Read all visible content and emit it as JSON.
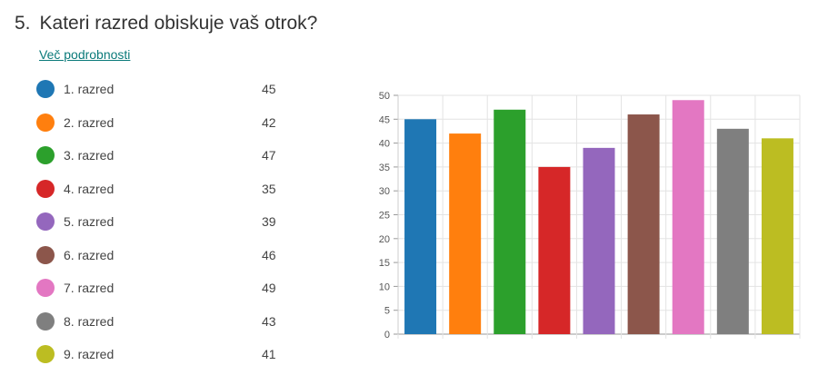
{
  "question": {
    "number": "5.",
    "text": "Kateri razred obiskuje vaš otrok?",
    "details_link": "Več podrobnosti"
  },
  "chart_data": {
    "type": "bar",
    "categories": [
      "1. razred",
      "2. razred",
      "3. razred",
      "4. razred",
      "5. razred",
      "6. razred",
      "7. razred",
      "8. razred",
      "9. razred"
    ],
    "values": [
      45,
      42,
      47,
      35,
      39,
      46,
      49,
      43,
      41
    ],
    "colors": [
      "#1f77b4",
      "#ff7f0e",
      "#2ca02c",
      "#d62728",
      "#9467bd",
      "#8c564b",
      "#e377c2",
      "#7f7f7f",
      "#bcbd22"
    ],
    "ylim": [
      0,
      50
    ],
    "yticks": [
      0,
      5,
      10,
      15,
      20,
      25,
      30,
      35,
      40,
      45,
      50
    ],
    "grid": true,
    "legend": "left"
  }
}
